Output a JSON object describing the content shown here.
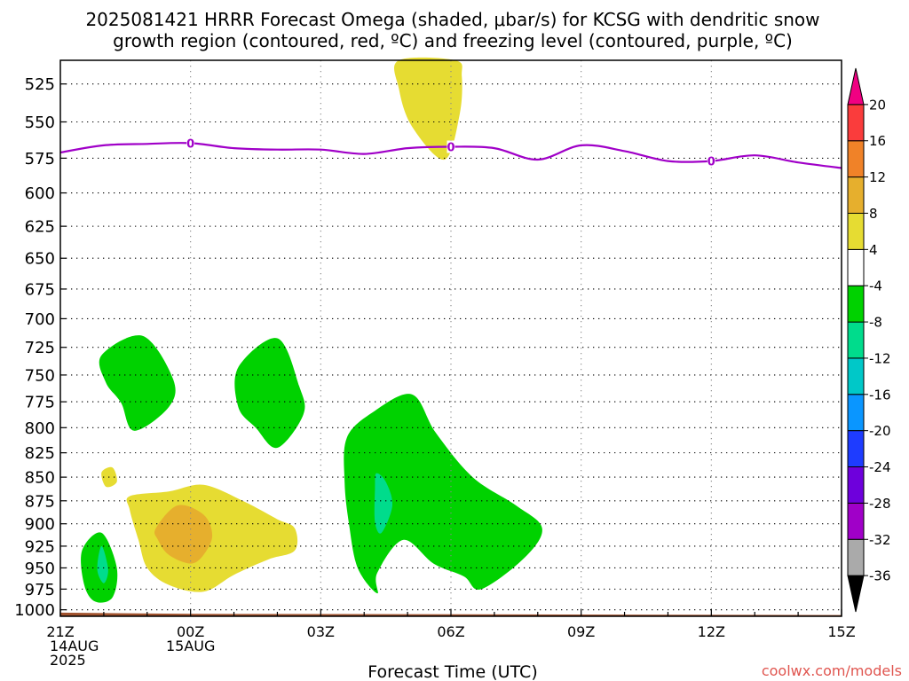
{
  "chart_data": {
    "type": "contour",
    "title": "2025081421 HRRR Forecast Omega (shaded, μbar/s) for KCSG with dendritic snow growth region (contoured, red, ºC) and freezing level (contoured, purple, ºC)",
    "title_lines": [
      "2025081421 HRRR Forecast Omega (shaded, μbar/s) for KCSG with dendritic snow",
      "growth region (contoured, red, ºC) and freezing level (contoured, purple, ºC)"
    ],
    "xlabel": "Forecast Time (UTC)",
    "credit": "coolwx.com/models",
    "x_unit": "forecast hours from 2025-08-14 21Z",
    "x_range": [
      0,
      18
    ],
    "y_range": [
      510,
      1008
    ],
    "y_scale": "log-pressure (inverted)",
    "grid": true,
    "x_ticks": [
      {
        "h": 0,
        "lines": [
          "21Z",
          "14AUG",
          "2025"
        ]
      },
      {
        "h": 3,
        "lines": [
          "00Z",
          "15AUG"
        ]
      },
      {
        "h": 6,
        "lines": [
          "03Z"
        ]
      },
      {
        "h": 9,
        "lines": [
          "06Z"
        ]
      },
      {
        "h": 12,
        "lines": [
          "09Z"
        ]
      },
      {
        "h": 15,
        "lines": [
          "12Z"
        ]
      },
      {
        "h": 18,
        "lines": [
          "15Z"
        ]
      }
    ],
    "y_ticks": [
      525,
      550,
      575,
      600,
      625,
      650,
      675,
      700,
      725,
      750,
      775,
      800,
      825,
      850,
      875,
      900,
      925,
      950,
      975,
      1000
    ],
    "colorbar": {
      "colors": [
        "#000000",
        "#aaaaaa",
        "#a000c8",
        "#6e00dc",
        "#1e3cff",
        "#0a96ff",
        "#00c8c8",
        "#00dc8c",
        "#00d200",
        "#ffffff",
        "#e6dc32",
        "#e6af2d",
        "#f08228",
        "#fa3c3c",
        "#f00082"
      ],
      "labels": [
        "-36",
        "-32",
        "-28",
        "-24",
        "-20",
        "-16",
        "-12",
        "-8",
        "-4",
        "4",
        "8",
        "12",
        "16",
        "20"
      ]
    },
    "freezing_level": {
      "name": "0",
      "color": "#a000c8",
      "points": [
        [
          0,
          571
        ],
        [
          1,
          566
        ],
        [
          2,
          565
        ],
        [
          3,
          564.5
        ],
        [
          4,
          568
        ],
        [
          5,
          569
        ],
        [
          6,
          569
        ],
        [
          7,
          572
        ],
        [
          8,
          568
        ],
        [
          9,
          567
        ],
        [
          10,
          568
        ],
        [
          11,
          576
        ],
        [
          12,
          566
        ],
        [
          13,
          570
        ],
        [
          14,
          577
        ],
        [
          15,
          577
        ],
        [
          16,
          573
        ],
        [
          17,
          578
        ],
        [
          18,
          582
        ]
      ],
      "labels_at": [
        3,
        9,
        15
      ]
    },
    "terrain": {
      "color": "#a0522d",
      "points": [
        [
          0,
          1003.5
        ],
        [
          3,
          1005
        ],
        [
          9,
          1005.5
        ],
        [
          14,
          1006
        ],
        [
          18,
          1006.5
        ]
      ]
    },
    "omega_regions": [
      {
        "color": "#e6dc32",
        "points": [
          [
            7.8,
            510
          ],
          [
            9.1,
            510
          ],
          [
            9.25,
            520
          ],
          [
            9.2,
            545
          ],
          [
            8.85,
            576
          ],
          [
            8.1,
            553
          ],
          [
            7.8,
            528
          ]
        ]
      },
      {
        "color": "#00d200",
        "points": [
          [
            0.95,
            732
          ],
          [
            1.9,
            715
          ],
          [
            2.6,
            754
          ],
          [
            2.5,
            780
          ],
          [
            1.7,
            803
          ],
          [
            1.4,
            776
          ],
          [
            1.05,
            757
          ]
        ]
      },
      {
        "color": "#00d200",
        "points": [
          [
            4.1,
            743
          ],
          [
            5.0,
            717
          ],
          [
            5.5,
            760
          ],
          [
            5.6,
            787
          ],
          [
            5.0,
            820
          ],
          [
            4.5,
            800
          ],
          [
            4.1,
            780
          ]
        ]
      },
      {
        "color": "#00d200",
        "points": [
          [
            6.6,
            810
          ],
          [
            7.2,
            785
          ],
          [
            8.1,
            768
          ],
          [
            8.65,
            805
          ],
          [
            9.5,
            850
          ],
          [
            10.5,
            880
          ],
          [
            11.1,
            905
          ],
          [
            10.7,
            938
          ],
          [
            9.7,
            975
          ],
          [
            9.3,
            960
          ],
          [
            8.6,
            945
          ],
          [
            7.9,
            918
          ],
          [
            7.3,
            956
          ],
          [
            7.3,
            980
          ],
          [
            6.85,
            950
          ],
          [
            6.65,
            900
          ],
          [
            6.55,
            855
          ]
        ]
      },
      {
        "color": "#00dc8c",
        "points": [
          [
            7.28,
            846
          ],
          [
            7.5,
            855
          ],
          [
            7.65,
            880
          ],
          [
            7.4,
            910
          ],
          [
            7.25,
            898
          ],
          [
            7.25,
            862
          ]
        ]
      },
      {
        "color": "#00d200",
        "points": [
          [
            0.5,
            930
          ],
          [
            0.95,
            910
          ],
          [
            1.3,
            950
          ],
          [
            1.2,
            985
          ],
          [
            0.8,
            990
          ],
          [
            0.55,
            970
          ]
        ]
      },
      {
        "color": "#00dc8c",
        "points": [
          [
            0.95,
            925
          ],
          [
            1.1,
            952
          ],
          [
            1.0,
            968
          ],
          [
            0.85,
            952
          ]
        ]
      },
      {
        "color": "#e6dc32",
        "points": [
          [
            0.95,
            845
          ],
          [
            1.2,
            840
          ],
          [
            1.3,
            855
          ],
          [
            1.05,
            860
          ]
        ]
      },
      {
        "color": "#e6dc32",
        "points": [
          [
            1.6,
            870
          ],
          [
            2.5,
            865
          ],
          [
            3.3,
            858
          ],
          [
            4.2,
            875
          ],
          [
            5.0,
            895
          ],
          [
            5.4,
            905
          ],
          [
            5.4,
            930
          ],
          [
            4.8,
            940
          ],
          [
            4.0,
            958
          ],
          [
            3.3,
            978
          ],
          [
            2.5,
            970
          ],
          [
            2.0,
            950
          ],
          [
            1.8,
            918
          ],
          [
            1.6,
            885
          ]
        ]
      },
      {
        "color": "#e6af2d",
        "points": [
          [
            2.2,
            905
          ],
          [
            2.7,
            880
          ],
          [
            3.3,
            890
          ],
          [
            3.5,
            913
          ],
          [
            3.3,
            935
          ],
          [
            3.0,
            945
          ],
          [
            2.5,
            935
          ],
          [
            2.25,
            918
          ]
        ]
      }
    ]
  }
}
